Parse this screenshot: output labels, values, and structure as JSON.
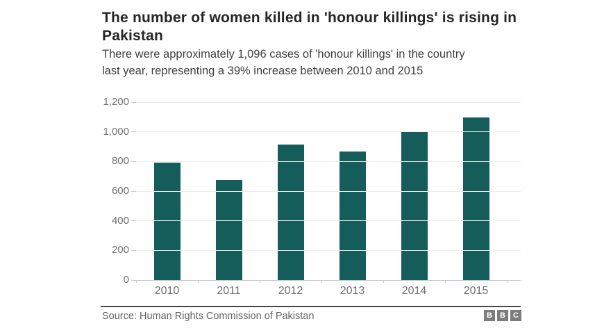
{
  "header": {
    "title": "The number of women killed in 'honour killings' is rising in Pakistan",
    "title_lines": [
      "The number of women killed in 'honour killings' is rising in",
      "Pakistan"
    ],
    "subtitle": "There were approximately 1,096 cases of 'honour killings' in the country last year, representing a 39% increase between 2010 and 2015",
    "subtitle_lines": [
      "There were approximately 1,096 cases of 'honour killings' in the country",
      "last year, representing a 39% increase between 2010 and 2015"
    ]
  },
  "chart_data": {
    "type": "bar",
    "categories": [
      "2010",
      "2011",
      "2012",
      "2013",
      "2014",
      "2015"
    ],
    "values": [
      791,
      675,
      913,
      869,
      1005,
      1096
    ],
    "title": "",
    "xlabel": "",
    "ylabel": "",
    "ylim": [
      0,
      1200
    ],
    "yticks": [
      0,
      200,
      400,
      600,
      800,
      1000,
      1200
    ],
    "ytick_labels": [
      "0",
      "200",
      "400",
      "600",
      "800",
      "1,000",
      "1,200"
    ],
    "grid": true,
    "legend": false,
    "bar_color": "#155d5a"
  },
  "footer": {
    "source": "Source: Human Rights Commission of Pakistan",
    "logo_letters": [
      "B",
      "B",
      "C"
    ]
  },
  "colors": {
    "bar": "#155d5a",
    "title_text": "#262626",
    "subtitle_text": "#3f3f3f",
    "axis_text": "#6f6f6f",
    "gridline": "#ececec",
    "axis_line": "#c9c9c9",
    "divider": "#454545",
    "source_text": "#636363",
    "logo_box": "#7d7d7d"
  }
}
